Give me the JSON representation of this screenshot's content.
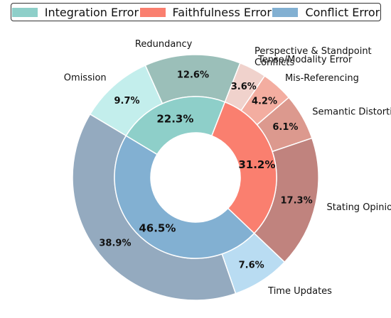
{
  "chart_data": {
    "type": "pie",
    "legend": [
      {
        "label": "Integration Error",
        "color": "#8ecfc9"
      },
      {
        "label": "Faithfulness Error",
        "color": "#fa7f6f"
      },
      {
        "label": "Conflict Error",
        "color": "#82b0d2"
      }
    ],
    "inner_ring": [
      {
        "name": "Integration Error",
        "value": 22.3,
        "label": "22.3%",
        "color": "#8ecfc9"
      },
      {
        "name": "Faithfulness Error",
        "value": 31.2,
        "label": "31.2%",
        "color": "#fa7f6f"
      },
      {
        "name": "Conflict Error",
        "value": 46.5,
        "label": "46.5%",
        "color": "#82b0d2"
      }
    ],
    "outer_ring": [
      {
        "name": "Omission",
        "value": 9.7,
        "label": "9.7%",
        "color": "#c3eeec",
        "parent": "Integration Error"
      },
      {
        "name": "Redundancy",
        "value": 12.6,
        "label": "12.6%",
        "color": "#9bbfb9",
        "parent": "Integration Error"
      },
      {
        "name": "Tense/Modality Error",
        "value": 3.6,
        "label": "3.6%",
        "color": "#f0d2cc",
        "parent": "Faithfulness Error"
      },
      {
        "name": "Mis-Referencing",
        "value": 4.2,
        "label": "4.2%",
        "color": "#f3ada0",
        "parent": "Faithfulness Error"
      },
      {
        "name": "Semantic Distortion",
        "value": 6.1,
        "label": "6.1%",
        "color": "#dc998e",
        "parent": "Faithfulness Error"
      },
      {
        "name": "Stating Opinion As Fact",
        "value": 17.3,
        "label": "17.3%",
        "color": "#c0837e",
        "parent": "Faithfulness Error"
      },
      {
        "name": "Time Updates",
        "value": 7.6,
        "label": "7.6%",
        "color": "#b9dcf2",
        "parent": "Conflict Error"
      },
      {
        "name": "Perspective & Standpoint Conflicts",
        "value": 38.9,
        "label": "38.9%",
        "color": "#94aabf",
        "parent": "Conflict Error"
      }
    ]
  }
}
